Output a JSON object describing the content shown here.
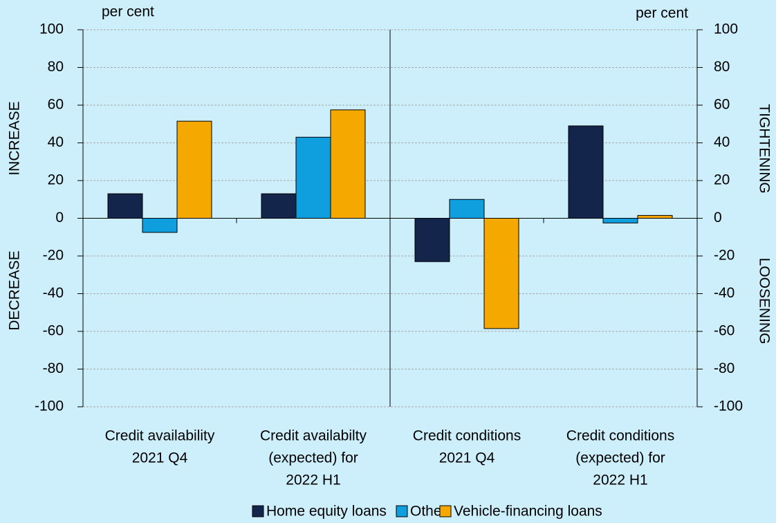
{
  "chart_data": {
    "type": "bar",
    "categories": [
      [
        "Credit availability",
        "2021 Q4"
      ],
      [
        "Credit availabilty",
        "(expected) for",
        "2022 H1"
      ],
      [
        "Credit conditions",
        "2021 Q4"
      ],
      [
        "Credit conditions",
        "(expected) for",
        "2022 H1"
      ]
    ],
    "series": [
      {
        "name": "Home equity loans",
        "color": "#13254b",
        "values": [
          13,
          13,
          -23,
          49
        ]
      },
      {
        "name": "Other",
        "color": "#0f9ede",
        "values": [
          -7.5,
          43,
          10,
          -2.5
        ]
      },
      {
        "name": "Vehicle-financing loans",
        "color": "#f5a800",
        "values": [
          51.5,
          57.5,
          -58.5,
          1.5
        ]
      }
    ],
    "ylim": [
      -100,
      100
    ],
    "yticks": [
      -100,
      -80,
      -60,
      -40,
      -20,
      0,
      20,
      40,
      60,
      80,
      100
    ],
    "y2lim": [
      -100,
      100
    ],
    "y2ticks": [
      -100,
      -80,
      -60,
      -40,
      -20,
      0,
      20,
      40,
      60,
      80,
      100
    ],
    "y_unit": "per cent",
    "y2_unit": "per cent",
    "y_label_up": "INCREASE",
    "y_label_down": "DECREASE",
    "y2_label_up": "TIGHTENING",
    "y2_label_down": "LOOSENING",
    "grid": true,
    "legend": "bottom"
  }
}
